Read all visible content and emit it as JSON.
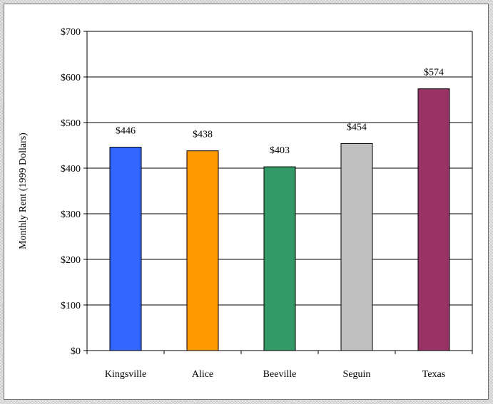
{
  "chart_data": {
    "type": "bar",
    "title": "",
    "xlabel": "",
    "ylabel": "Monthly Rent (1999 Dollars)",
    "categories": [
      "Kingsville",
      "Alice",
      "Beeville",
      "Seguin",
      "Texas"
    ],
    "values": [
      446,
      438,
      403,
      454,
      574
    ],
    "data_labels": [
      "$446",
      "$438",
      "$403",
      "$454",
      "$574"
    ],
    "bar_colors": [
      "#3366ff",
      "#ff9900",
      "#339966",
      "#c0c0c0",
      "#993366"
    ],
    "ylim": [
      0,
      700
    ],
    "yticks": [
      0,
      100,
      200,
      300,
      400,
      500,
      600,
      700
    ],
    "ytick_labels": [
      "$0",
      "$100",
      "$200",
      "$300",
      "$400",
      "$500",
      "$600",
      "$700"
    ],
    "grid": true,
    "legend": "none"
  }
}
